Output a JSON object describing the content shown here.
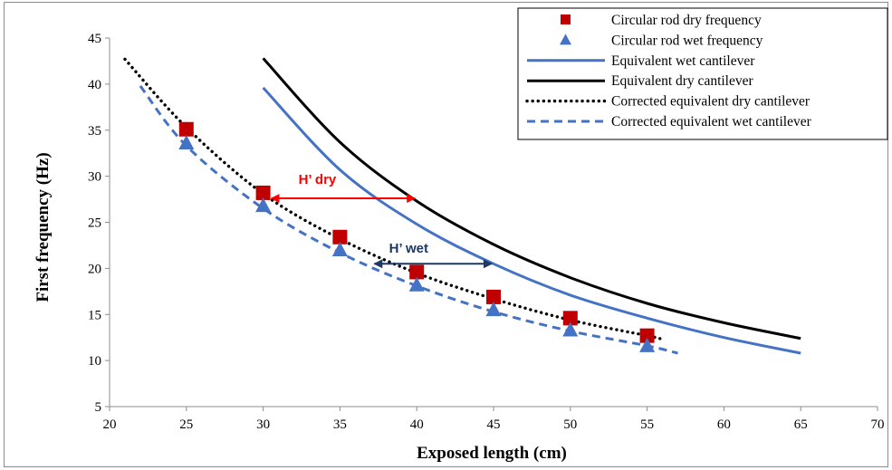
{
  "chart_data": {
    "type": "scatter",
    "xlabel": "Exposed length (cm)",
    "ylabel": "First frequency (Hz)",
    "xlim": [
      20,
      70
    ],
    "ylim": [
      5,
      45
    ],
    "xticks": [
      20,
      25,
      30,
      35,
      40,
      45,
      50,
      55,
      60,
      65,
      70
    ],
    "yticks": [
      5,
      10,
      15,
      20,
      25,
      30,
      35,
      40,
      45
    ],
    "grid": false,
    "legend_position": "top-right",
    "series": [
      {
        "name": "Circular rod dry frequency",
        "kind": "marker-square",
        "color": "#c00000",
        "x": [
          25,
          30,
          35,
          40,
          45,
          50,
          55
        ],
        "y": [
          35.1,
          28.2,
          23.4,
          19.6,
          16.9,
          14.6,
          12.7
        ]
      },
      {
        "name": "Circular rod wet frequency",
        "kind": "marker-triangle",
        "color": "#4472c4",
        "x": [
          25,
          30,
          35,
          40,
          45,
          50,
          55
        ],
        "y": [
          33.6,
          26.8,
          22.0,
          18.2,
          15.5,
          13.3,
          11.6
        ]
      },
      {
        "name": "Equivalent wet cantilever",
        "kind": "line-solid",
        "color": "#4472c4",
        "x": [
          30,
          35,
          40,
          45,
          50,
          55,
          60,
          65
        ],
        "y": [
          39.6,
          30.7,
          24.8,
          20.5,
          17.1,
          14.6,
          12.5,
          10.8
        ]
      },
      {
        "name": "Equivalent dry cantilever",
        "kind": "line-solid",
        "color": "#000000",
        "x": [
          30,
          35,
          40,
          45,
          50,
          55,
          60,
          65
        ],
        "y": [
          42.8,
          33.7,
          27.3,
          22.6,
          19.0,
          16.2,
          14.1,
          12.4
        ]
      },
      {
        "name": "Corrected equivalent dry cantilever",
        "kind": "line-dotted",
        "color": "#000000",
        "x": [
          21,
          25,
          30,
          35,
          40,
          45,
          50,
          55,
          56
        ],
        "y": [
          42.7,
          35.3,
          28.1,
          23.2,
          19.5,
          16.7,
          14.4,
          12.7,
          12.3
        ]
      },
      {
        "name": "Corrected equivalent wet cantilever",
        "kind": "line-dashed",
        "color": "#4472c4",
        "x": [
          22,
          25,
          30,
          35,
          40,
          45,
          50,
          55,
          57
        ],
        "y": [
          39.8,
          33.3,
          26.5,
          21.7,
          18.1,
          15.3,
          13.2,
          11.6,
          10.8
        ]
      }
    ],
    "annotations": [
      {
        "text": "H’ dry",
        "color": "#ff0000",
        "x_from": 30.3,
        "x_to": 40,
        "y": 27.6,
        "label_x": 32.3,
        "label_y": 29.2
      },
      {
        "text": "H’ wet",
        "color": "#1f3864",
        "x_from": 37,
        "x_to": 45,
        "y": 20.5,
        "label_x": 38.2,
        "label_y": 21.7
      }
    ]
  }
}
